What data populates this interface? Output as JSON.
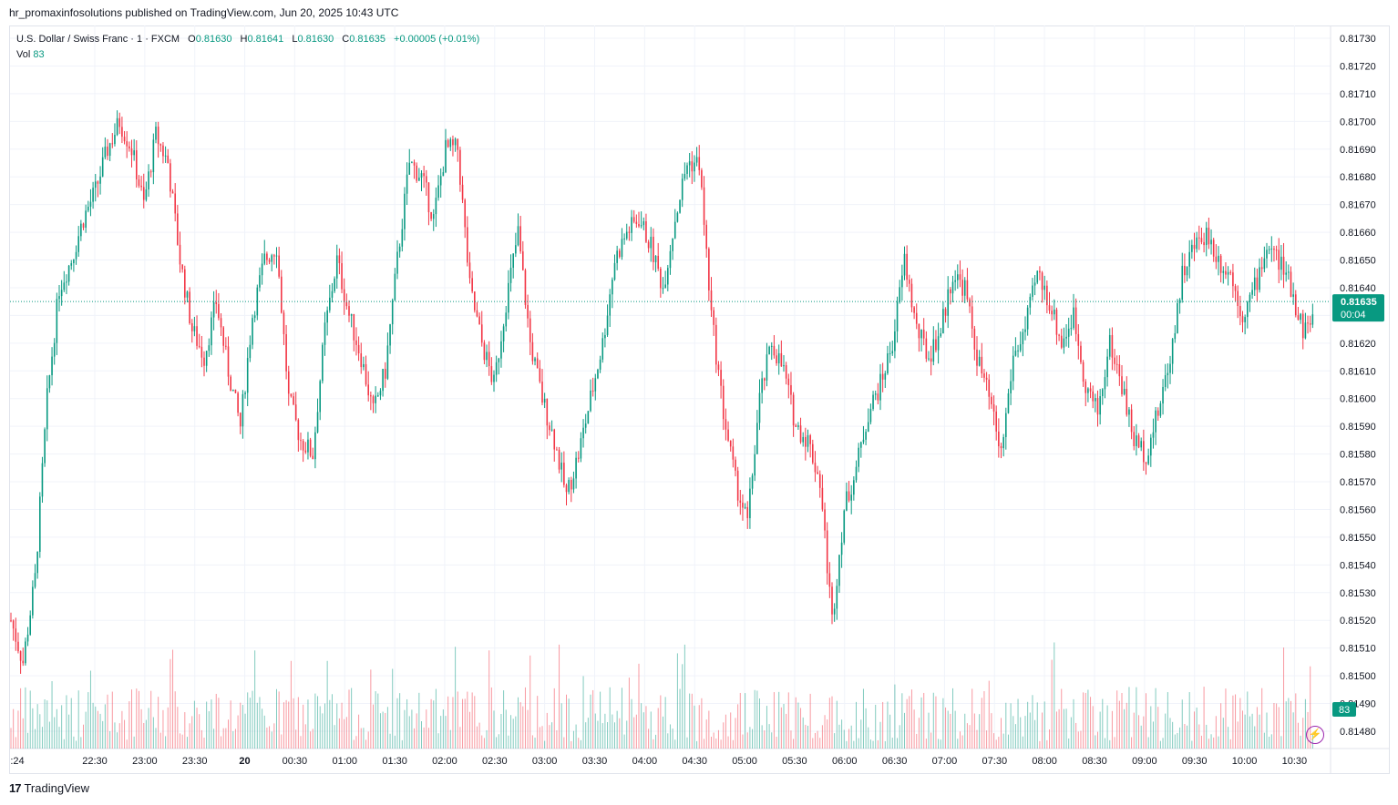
{
  "header": {
    "publisher_line": "hr_promaxinfosolutions published on TradingView.com, Jun 20, 2025 10:43 UTC"
  },
  "legend": {
    "symbol": "U.S. Dollar / Swiss Franc · 1 · FXCM",
    "open_label": "O",
    "open": "0.81630",
    "high_label": "H",
    "high": "0.81641",
    "low_label": "L",
    "low": "0.81630",
    "close_label": "C",
    "close": "0.81635",
    "change": "+0.00005 (+0.01%)",
    "vol_label": "Vol",
    "vol": "83"
  },
  "price_tag": {
    "price": "0.81635",
    "countdown": "00:04"
  },
  "volume_tag": "83",
  "footer": {
    "brand": "TradingView"
  },
  "colors": {
    "up": "#089981",
    "down": "#f23645",
    "price_line": "#089981",
    "grid": "#f0f3fa"
  },
  "icons": {
    "bolt": "lightning-icon",
    "logo": "tradingview-logo"
  },
  "chart_data": {
    "type": "candlestick",
    "title": "U.S. Dollar / Swiss Franc · 1 · FXCM",
    "y_ticks": [
      "0.81730",
      "0.81720",
      "0.81710",
      "0.81700",
      "0.81690",
      "0.81680",
      "0.81670",
      "0.81660",
      "0.81650",
      "0.81640",
      "0.81630",
      "0.81620",
      "0.81610",
      "0.81600",
      "0.81590",
      "0.81580",
      "0.81570",
      "0.81560",
      "0.81550",
      "0.81540",
      "0.81530",
      "0.81520",
      "0.81510",
      "0.81500",
      "0.81490",
      "0.81480"
    ],
    "x_ticks": [
      ":24",
      "22:30",
      "23:00",
      "23:30",
      "20",
      "00:30",
      "01:00",
      "01:30",
      "02:00",
      "02:30",
      "03:00",
      "03:30",
      "04:00",
      "04:30",
      "05:00",
      "05:30",
      "06:00",
      "06:30",
      "07:00",
      "07:30",
      "08:00",
      "08:30",
      "09:00",
      "09:30",
      "10:00",
      "10:30"
    ],
    "ylim": [
      0.81476,
      0.81734
    ],
    "last_price": 0.81635,
    "close_path": [
      [
        0,
        0.8152
      ],
      [
        5,
        0.81505
      ],
      [
        10,
        0.81535
      ],
      [
        15,
        0.816
      ],
      [
        20,
        0.8164
      ],
      [
        25,
        0.8165
      ],
      [
        30,
        0.81665
      ],
      [
        35,
        0.81675
      ],
      [
        40,
        0.8169
      ],
      [
        45,
        0.817
      ],
      [
        50,
        0.8169
      ],
      [
        55,
        0.8167
      ],
      [
        60,
        0.81695
      ],
      [
        65,
        0.81685
      ],
      [
        70,
        0.8165
      ],
      [
        75,
        0.81625
      ],
      [
        80,
        0.81615
      ],
      [
        85,
        0.81635
      ],
      [
        90,
        0.8161
      ],
      [
        95,
        0.8159
      ],
      [
        100,
        0.8163
      ],
      [
        105,
        0.8165
      ],
      [
        110,
        0.81655
      ],
      [
        115,
        0.816
      ],
      [
        120,
        0.81585
      ],
      [
        125,
        0.8158
      ],
      [
        130,
        0.81625
      ],
      [
        135,
        0.8165
      ],
      [
        140,
        0.8163
      ],
      [
        145,
        0.81615
      ],
      [
        150,
        0.81595
      ],
      [
        155,
        0.8161
      ],
      [
        160,
        0.8165
      ],
      [
        165,
        0.81685
      ],
      [
        170,
        0.8168
      ],
      [
        175,
        0.81665
      ],
      [
        180,
        0.8169
      ],
      [
        185,
        0.8169
      ],
      [
        190,
        0.8164
      ],
      [
        195,
        0.8162
      ],
      [
        200,
        0.81605
      ],
      [
        205,
        0.81635
      ],
      [
        210,
        0.8166
      ],
      [
        215,
        0.8162
      ],
      [
        220,
        0.816
      ],
      [
        225,
        0.81585
      ],
      [
        230,
        0.81565
      ],
      [
        235,
        0.8158
      ],
      [
        240,
        0.816
      ],
      [
        245,
        0.8162
      ],
      [
        250,
        0.8165
      ],
      [
        255,
        0.8166
      ],
      [
        260,
        0.81665
      ],
      [
        265,
        0.81655
      ],
      [
        270,
        0.8164
      ],
      [
        275,
        0.81665
      ],
      [
        280,
        0.81685
      ],
      [
        285,
        0.81685
      ],
      [
        290,
        0.8163
      ],
      [
        295,
        0.81595
      ],
      [
        300,
        0.8157
      ],
      [
        305,
        0.81555
      ],
      [
        310,
        0.816
      ],
      [
        315,
        0.8162
      ],
      [
        320,
        0.8161
      ],
      [
        325,
        0.8159
      ],
      [
        330,
        0.81585
      ],
      [
        335,
        0.8157
      ],
      [
        340,
        0.8152
      ],
      [
        345,
        0.8156
      ],
      [
        350,
        0.81575
      ],
      [
        355,
        0.81595
      ],
      [
        360,
        0.81605
      ],
      [
        365,
        0.8162
      ],
      [
        370,
        0.8165
      ],
      [
        375,
        0.81625
      ],
      [
        380,
        0.81615
      ],
      [
        385,
        0.81625
      ],
      [
        390,
        0.81645
      ],
      [
        395,
        0.8164
      ],
      [
        400,
        0.81615
      ],
      [
        405,
        0.816
      ],
      [
        410,
        0.8158
      ],
      [
        415,
        0.81615
      ],
      [
        420,
        0.81625
      ],
      [
        425,
        0.81645
      ],
      [
        430,
        0.81635
      ],
      [
        435,
        0.8162
      ],
      [
        440,
        0.8163
      ],
      [
        445,
        0.81605
      ],
      [
        450,
        0.81595
      ],
      [
        455,
        0.8162
      ],
      [
        460,
        0.81605
      ],
      [
        465,
        0.81585
      ],
      [
        470,
        0.8158
      ],
      [
        475,
        0.81595
      ],
      [
        480,
        0.81615
      ],
      [
        485,
        0.81645
      ],
      [
        490,
        0.81655
      ],
      [
        495,
        0.8166
      ],
      [
        500,
        0.8165
      ],
      [
        505,
        0.81645
      ],
      [
        510,
        0.8163
      ],
      [
        515,
        0.8164
      ],
      [
        520,
        0.81655
      ],
      [
        525,
        0.8165
      ],
      [
        530,
        0.8164
      ],
      [
        535,
        0.81625
      ],
      [
        540,
        0.8163
      ]
    ]
  }
}
